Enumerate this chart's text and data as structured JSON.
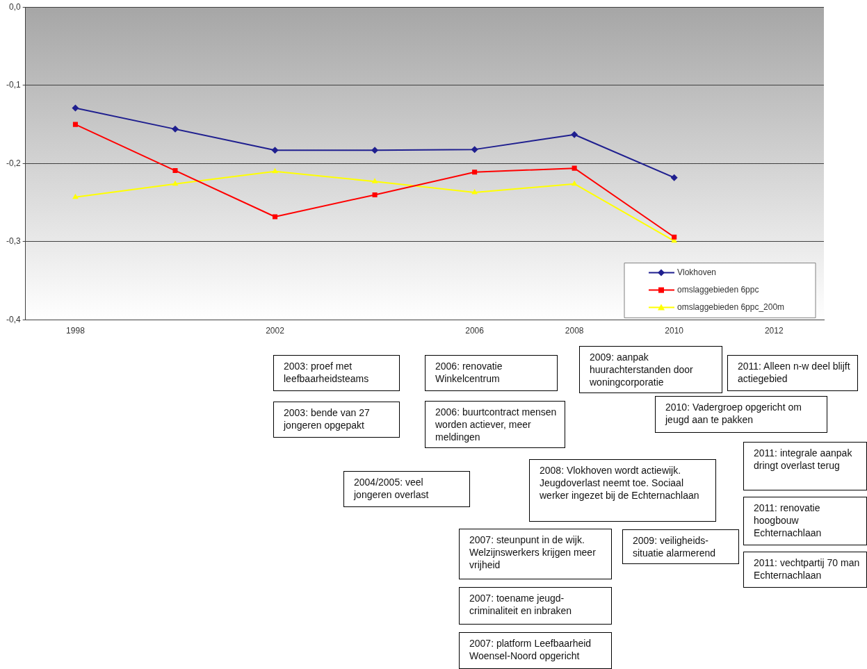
{
  "chart_data": {
    "type": "line",
    "categories": [
      "1998",
      null,
      "2002",
      null,
      "2006",
      "2008",
      "2010",
      "2012"
    ],
    "series": [
      {
        "name": "Vlokhoven",
        "color": "#1f1f8f",
        "marker": "diamond",
        "values": [
          -0.129,
          -0.156,
          -0.183,
          -0.183,
          -0.182,
          -0.163,
          -0.218,
          null
        ]
      },
      {
        "name": "omslaggebieden 6ppc",
        "color": "#ff0000",
        "marker": "square",
        "values": [
          -0.15,
          -0.209,
          -0.268,
          -0.24,
          -0.211,
          -0.206,
          -0.294,
          null
        ]
      },
      {
        "name": "omslaggebieden 6ppc_200m",
        "color": "#ffff00",
        "marker": "triangle",
        "values": [
          -0.243,
          -0.226,
          -0.21,
          -0.223,
          -0.237,
          -0.226,
          -0.299,
          null
        ]
      }
    ],
    "ylim": [
      -0.4,
      0
    ],
    "yticks": [
      {
        "value": -0.4,
        "label": "-0,4"
      },
      {
        "value": -0.3,
        "label": "-0,3"
      },
      {
        "value": -0.2,
        "label": "-0,2"
      },
      {
        "value": -0.1,
        "label": "-0,1"
      },
      {
        "value": 0,
        "label": "0,0"
      }
    ],
    "grid": "y",
    "legend": "bottom right",
    "line_style": "solid",
    "annotations": [
      "2003: proef met leefbaarheidsteams",
      "2003: bende van 27 jongeren opgepakt",
      "2004/2005: veel jongeren overlast",
      "2006: renovatie Winkelcentrum",
      "2006: buurtcontract mensen worden actiever, meer meldingen",
      "2007: steunpunt in de wijk. Welzijnswerkers krijgen meer vrijheid",
      "2007: toename jeugd-criminaliteit en inbraken",
      "2007: platform Leefbaarheid Woensel-Noord opgericht",
      "2008: Vlokhoven wordt actiewijk. Jeugdoverlast neemt toe. Sociaal werker ingezet bij de Echternachlaan",
      "2009: aanpak huurachterstanden door woningcorporatie",
      "2009: veiligheids-situatie alarmerend",
      "2010: Vadergroep opgericht om jeugd aan te pakken",
      "2011: Alleen n-w deel blijft actiegebied",
      "2011: integrale aanpak dringt overlast terug",
      "2011: renovatie hoogbouw Echternachlaan",
      "2011: vechtpartij 70 man Echternachlaan"
    ]
  }
}
